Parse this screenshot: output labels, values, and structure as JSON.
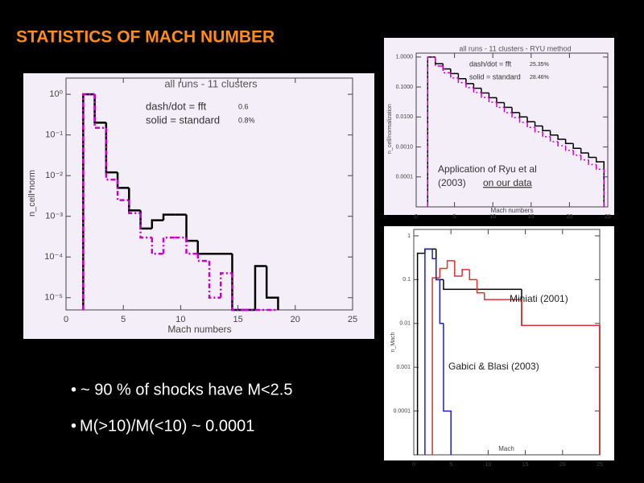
{
  "title": "STATISTICS OF MACH NUMBER",
  "bullets": [
    "~ 90 % of shocks have M<2.5",
    "M(>10)/M(<10) ~ 0.0001"
  ],
  "chart_data": [
    {
      "type": "histogram",
      "title": "all runs - 11 clusters",
      "xlabel": "Mach numbers",
      "ylabel": "n_cell*norm",
      "annotations": [
        "dash/dot = fft",
        "0.6",
        "solid = standard",
        "0.8%"
      ],
      "log_y": true,
      "xlim": [
        0,
        25
      ],
      "ylim": [
        5e-06,
        2.5
      ],
      "xticks": [
        0,
        5,
        10,
        15,
        20,
        25
      ],
      "yticks": [
        {
          "value": 1,
          "label": "10⁰"
        },
        {
          "value": 0.1,
          "label": "10⁻¹"
        },
        {
          "value": 0.01,
          "label": "10⁻²"
        },
        {
          "value": 0.001,
          "label": "10⁻³"
        },
        {
          "value": 0.0001,
          "label": "10⁻⁴"
        },
        {
          "value": 1e-05,
          "label": "10⁻⁵"
        }
      ],
      "series": [
        {
          "color": "#000000",
          "dash": false,
          "bins": [
            1.5,
            2.5,
            3.5,
            4.5,
            5.5,
            6.5,
            7.5,
            8.5,
            9.5,
            10.5,
            11.5,
            12.5,
            13.5,
            14.5,
            15.5,
            16.5,
            17.5,
            18.5
          ],
          "values": [
            1,
            0.2,
            0.012,
            0.005,
            0.0014,
            0.0005,
            0.0008,
            0.0011,
            0.0011,
            0.00025,
            0.00012,
            0.00012,
            0.00012,
            0,
            0,
            6e-05,
            1e-05
          ]
        },
        {
          "color": "#cc00cc",
          "dash": true,
          "bins": [
            1.5,
            2.5,
            3.5,
            4.5,
            5.5,
            6.5,
            7.5,
            8.5,
            9.5,
            10.5,
            11.5,
            12.5,
            13.5,
            14.5,
            15.5,
            16.5,
            17.5,
            18.5
          ],
          "values": [
            1,
            0.15,
            0.008,
            0.0025,
            0.0012,
            0.0003,
            0.00012,
            0.0003,
            0.0003,
            0.00012,
            8e-05,
            1e-05,
            4e-05,
            0,
            0,
            0,
            0
          ]
        }
      ]
    },
    {
      "type": "histogram",
      "title": "all runs - 11 clusters - RYU method",
      "xlabel": "Mach numbers",
      "ylabel": "n_cell/normalization",
      "annotations": [
        "dash/dot = fft",
        "25.35%",
        "solid = standard",
        "28.46%",
        "Application of Ryu et al",
        "(2003)",
        "on our data"
      ],
      "log_y": true,
      "xlim": [
        0,
        25
      ],
      "ylim": [
        1e-05,
        1.35
      ],
      "xticks": [
        0,
        5,
        10,
        15,
        20,
        25
      ],
      "yticks": [
        {
          "value": 1,
          "label": "1.0000"
        },
        {
          "value": 0.1,
          "label": "0.1000"
        },
        {
          "value": 0.01,
          "label": "0.0100"
        },
        {
          "value": 0.001,
          "label": "0.0010"
        },
        {
          "value": 0.0001,
          "label": "0.0001"
        }
      ],
      "series": [
        {
          "color": "#000000",
          "dash": false,
          "bins": [
            1.5,
            2.5,
            3.5,
            4.5,
            5.5,
            6.5,
            7.5,
            8.5,
            9.5,
            10.5,
            11.5,
            12.5,
            13.5,
            14.5,
            15.5,
            16.5,
            17.5,
            18.5,
            19.5,
            20.5,
            21.5,
            22.5,
            23.5,
            24.5
          ],
          "values": [
            1,
            0.6,
            0.4,
            0.28,
            0.19,
            0.13,
            0.091,
            0.063,
            0.044,
            0.03,
            0.021,
            0.014,
            0.01,
            0.0069,
            0.005,
            0.0035,
            0.0025,
            0.0018,
            0.0013,
            0.0009,
            0.00063,
            0.00045,
            0.00032
          ]
        },
        {
          "color": "#cc00cc",
          "dash": true,
          "bins": [
            1.5,
            2.5,
            3.5,
            4.5,
            5.5,
            6.5,
            7.5,
            8.5,
            9.5,
            10.5,
            11.5,
            12.5,
            13.5,
            14.5,
            15.5,
            16.5,
            17.5,
            18.5,
            19.5,
            20.5,
            21.5,
            22.5,
            23.5,
            24.5
          ],
          "values": [
            1,
            0.5,
            0.3,
            0.2,
            0.14,
            0.095,
            0.065,
            0.045,
            0.031,
            0.021,
            0.014,
            0.0095,
            0.0066,
            0.0045,
            0.0032,
            0.0022,
            0.0015,
            0.0011,
            0.00077,
            0.00053,
            0.00037,
            0.00026,
            0.00018
          ]
        }
      ]
    },
    {
      "type": "histogram",
      "xlabel": "Mach",
      "ylabel": "n_Mach",
      "log_y": true,
      "xlim": [
        0,
        25
      ],
      "ylim": [
        1e-05,
        1.4
      ],
      "xticks": [
        0,
        5,
        10,
        15,
        20,
        25
      ],
      "yticks": [
        1,
        0.1,
        0.01,
        0.001,
        0.0001
      ],
      "series": [
        {
          "color": "#000000",
          "dash": false,
          "bins": [
            0.5,
            1.5,
            3.0,
            4.0,
            14.5,
            25
          ],
          "values": [
            0.4,
            0.5,
            0.1,
            0.06,
            0.009
          ]
        },
        {
          "name": "Miniati (2001)",
          "color": "#e03030",
          "dash": false,
          "bins": [
            2.5,
            3.5,
            4.5,
            5.5,
            6.5,
            7.5,
            8.5,
            9.5,
            10.5,
            14.5,
            25
          ],
          "values": [
            0.11,
            0.18,
            0.27,
            0.12,
            0.17,
            0.1,
            0.05,
            0.035,
            0.035,
            0.009
          ]
        },
        {
          "name": "Gabici &  Blasi (2003)",
          "color": "#2020c0",
          "dash": false,
          "bins": [
            1.5,
            2.5,
            3.0,
            3.5,
            4.0,
            5.0
          ],
          "values": [
            0.5,
            0.3,
            0.1,
            0.01,
            0.0001
          ]
        }
      ]
    }
  ]
}
